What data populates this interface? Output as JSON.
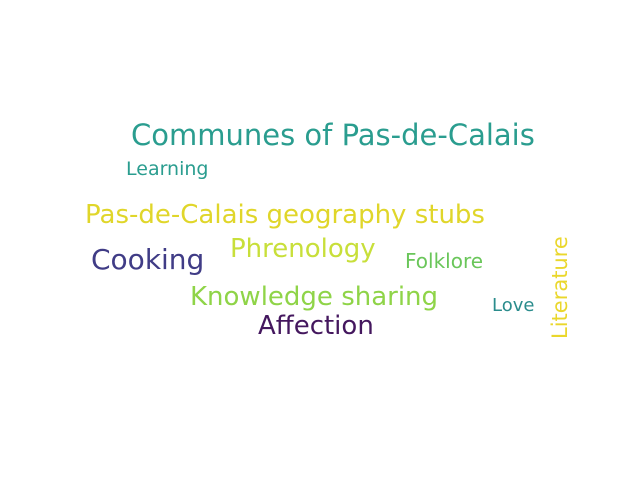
{
  "words": [
    {
      "text": "Communes of Pas-de-Calais",
      "color": "#2a9d8f"
    },
    {
      "text": "Learning",
      "color": "#2a9d8f"
    },
    {
      "text": "Pas-de-Calais geography stubs",
      "color": "#e0d62a"
    },
    {
      "text": "Phrenology",
      "color": "#c8df3a"
    },
    {
      "text": "Cooking",
      "color": "#403c86"
    },
    {
      "text": "Folklore",
      "color": "#6ac65a"
    },
    {
      "text": "Knowledge sharing",
      "color": "#8fd448"
    },
    {
      "text": "Love",
      "color": "#2a8c8c"
    },
    {
      "text": "Affection",
      "color": "#44175e"
    },
    {
      "text": "Literature",
      "color": "#ead72c"
    }
  ]
}
